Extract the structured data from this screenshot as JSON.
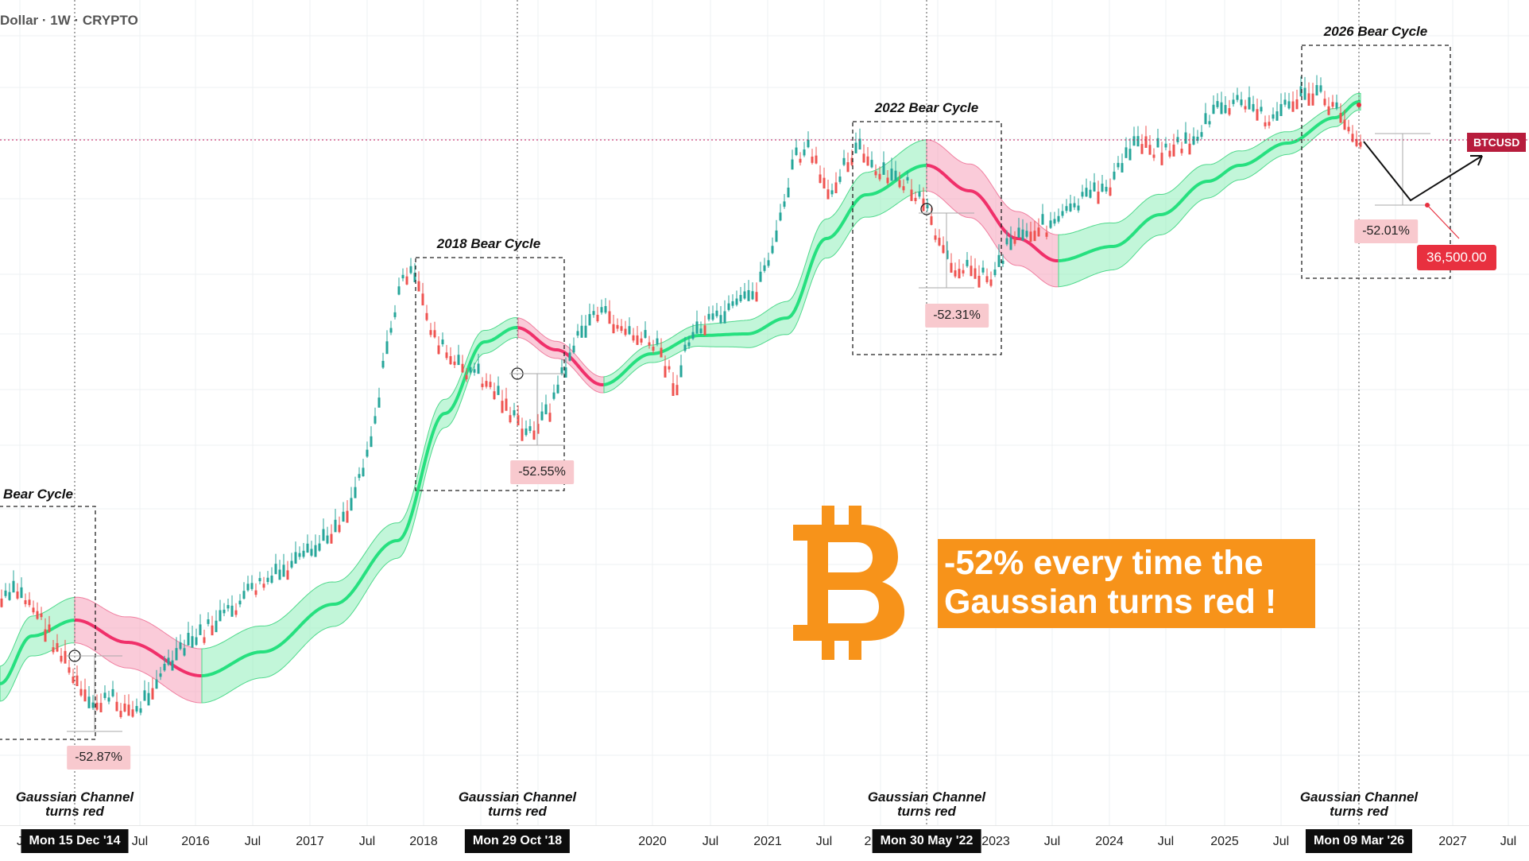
{
  "header": {
    "title": "Dollar · 1W · CRYPTO"
  },
  "colors": {
    "green": "#26e07f",
    "red": "#f0306a",
    "band_green": "#9af0c0",
    "band_red": "#f7a9bf",
    "bitcoin": "#f7931a",
    "candle_up": "#26a69a",
    "candle_down": "#ef5350"
  },
  "cycles": [
    {
      "label": "Bear Cycle",
      "change": "-52.87%",
      "date": "Mon 15 Dec '14",
      "note": [
        "Gaussian Channel",
        "turns red"
      ]
    },
    {
      "label": "2018 Bear Cycle",
      "change": "-52.55%",
      "date": "Mon 29 Oct '18",
      "note": [
        "Gaussian Channel",
        "turns red"
      ]
    },
    {
      "label": "2022 Bear Cycle",
      "change": "-52.31%",
      "date": "Mon 30 May '22",
      "note": [
        "Gaussian Channel",
        "turns red"
      ]
    },
    {
      "label": "2026 Bear Cycle",
      "change": "-52.01%",
      "date": "Mon 09 Mar '26",
      "note": [
        "Gaussian Channel",
        "turns red"
      ]
    }
  ],
  "symbol_tag": "BTCUSD",
  "target_tag": "36,500.00",
  "headline": [
    "-52% every time the",
    "Gaussian turns red !"
  ],
  "icons": {
    "logo": "bitcoin-logo-icon"
  },
  "x_axis": {
    "ticks": [
      "J",
      "Jul",
      "2016",
      "Jul",
      "2017",
      "Jul",
      "2018",
      "2020",
      "Jul",
      "2021",
      "Jul",
      "2",
      "2023",
      "Jul",
      "2024",
      "Jul",
      "2025",
      "Jul",
      "2027",
      "Jul"
    ]
  },
  "chart_data": {
    "type": "line",
    "title": "Dollar · 1W · CRYPTO",
    "xlabel": "",
    "ylabel": "",
    "x_scale": "time (weekly)",
    "y_scale": "log",
    "grid": true,
    "series": [
      {
        "name": "BTCUSD",
        "style": "candlestick"
      },
      {
        "name": "",
        "style": "band"
      }
    ],
    "events": [
      {
        "label": "Bear Cycle",
        "date": "Mon 15 Dec '14",
        "drawdown_pct": -52.87
      },
      {
        "label": "2018 Bear Cycle",
        "date": "Mon 29 Oct '18",
        "drawdown_pct": -52.55
      },
      {
        "label": "2022 Bear Cycle",
        "date": "Mon 30 May '22",
        "drawdown_pct": -52.31
      },
      {
        "label": "2026 Bear Cycle",
        "date": "Mon 09 Mar '26",
        "drawdown_pct": -52.01
      }
    ],
    "target": 36500.0
  }
}
